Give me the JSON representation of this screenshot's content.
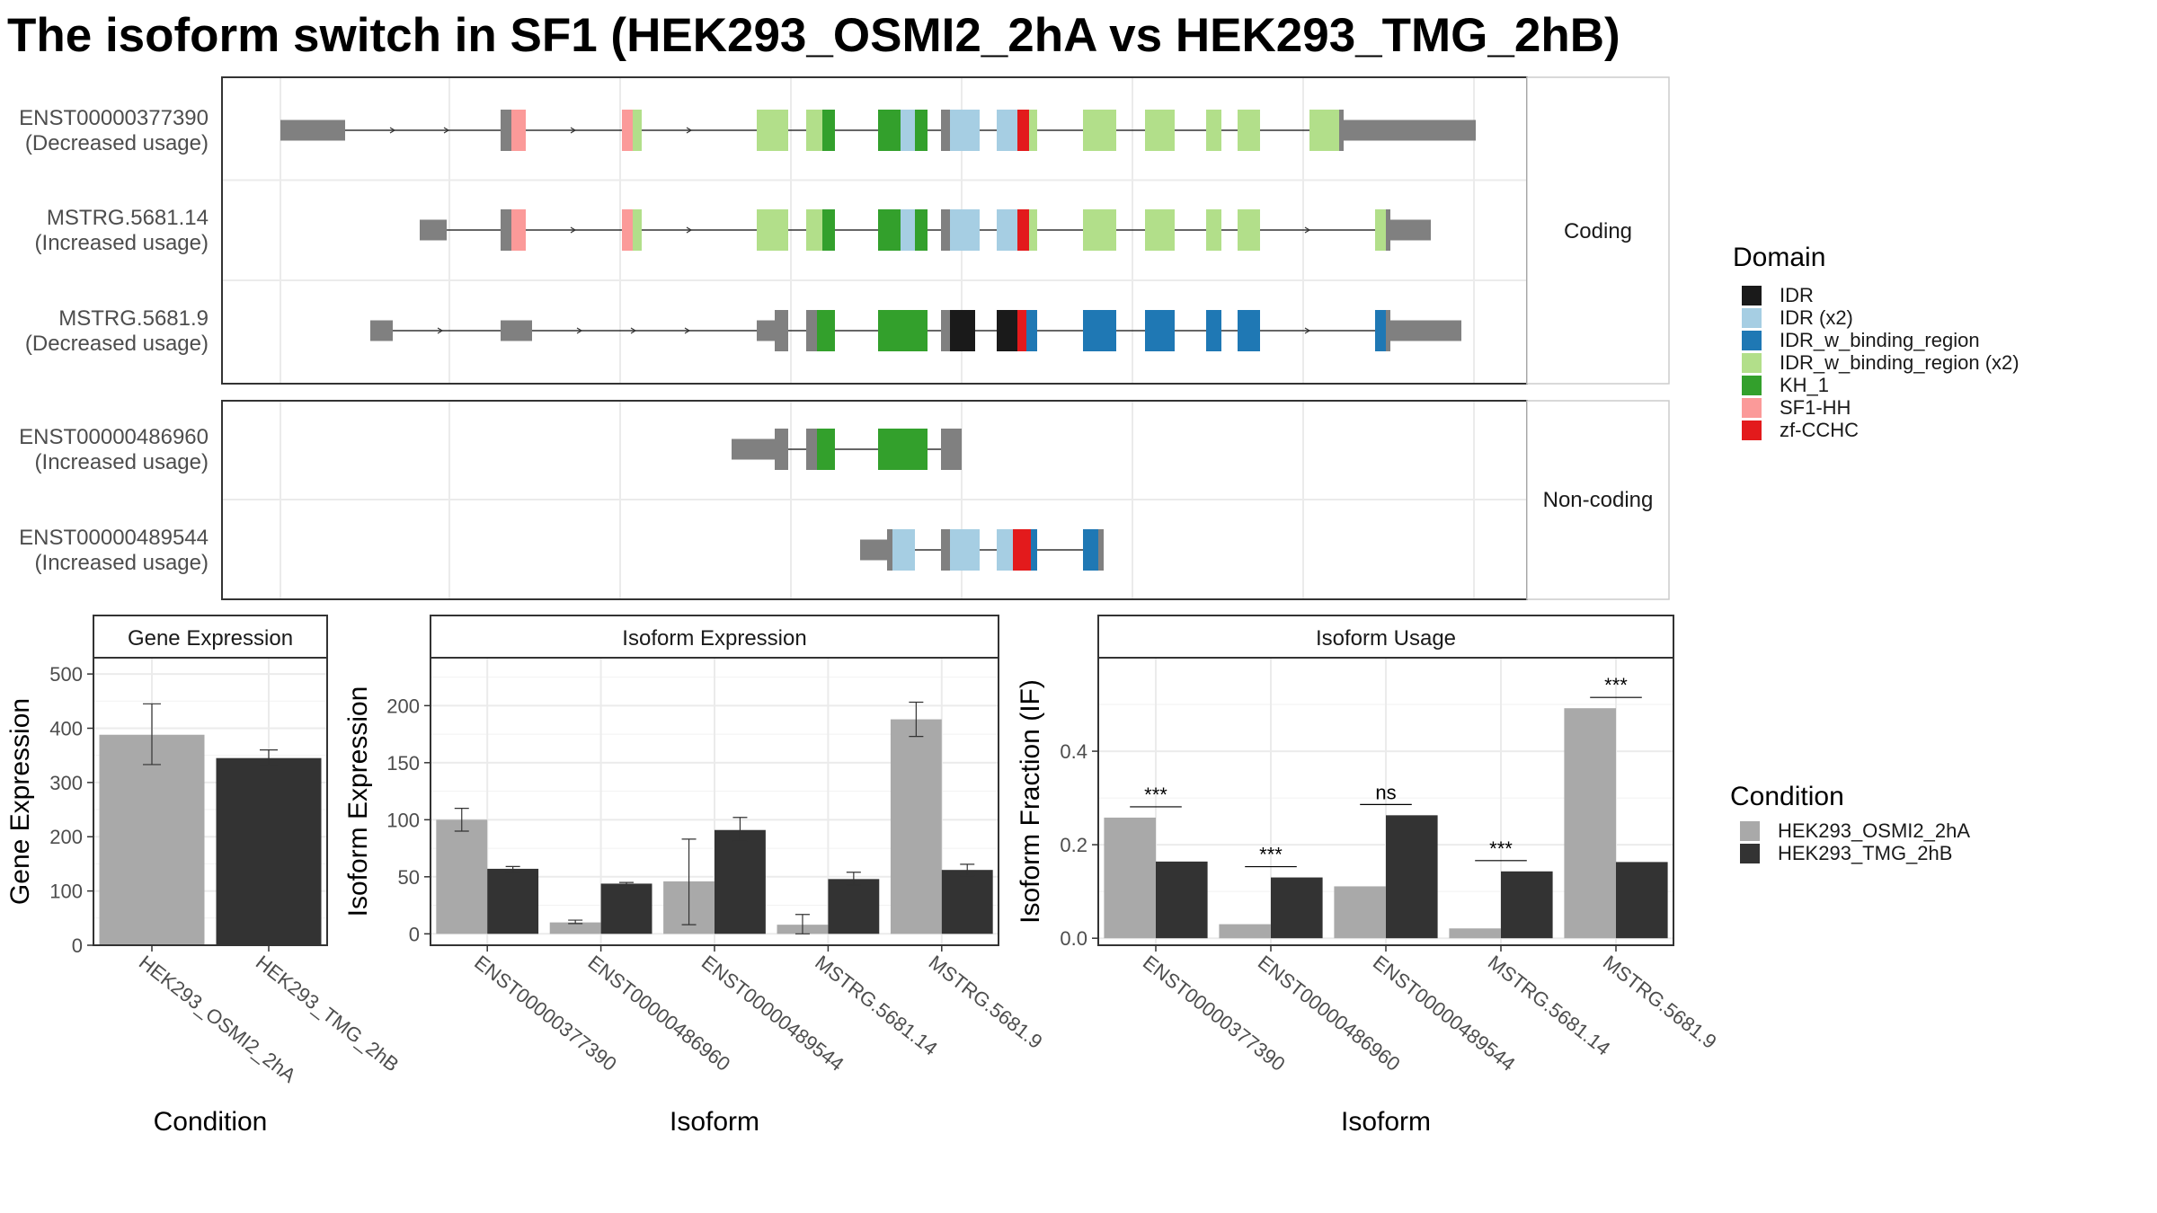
{
  "title": "The isoform switch in SF1 (HEK293_OSMI2_2hA vs HEK293_TMG_2hB)",
  "colors": {
    "IDR": "#1a1a1a",
    "IDR (x2)": "#a6cee3",
    "IDR_w_binding_region": "#1f78b4",
    "IDR_w_binding_region (x2)": "#b2df8a",
    "KH_1": "#33a02c",
    "SF1-HH": "#fb9a99",
    "zf-CCHC": "#e31a1c",
    "none": "#808080",
    "cond_a": "#a9a9a9",
    "cond_b": "#333333"
  },
  "structure": {
    "groups": [
      {
        "label": "Coding",
        "transcripts": [
          {
            "id": "ENST00000377390",
            "usage": "(Decreased usage)",
            "segments": [
              {
                "s": 0,
                "e": 72,
                "d": "none",
                "t": "utr"
              },
              {
                "s": 245,
                "e": 257,
                "d": "none",
                "t": "cds"
              },
              {
                "s": 257,
                "e": 273,
                "d": "SF1-HH",
                "t": "cds"
              },
              {
                "s": 380,
                "e": 392,
                "d": "SF1-HH",
                "t": "cds"
              },
              {
                "s": 392,
                "e": 402,
                "d": "IDR_w_binding_region (x2)",
                "t": "cds"
              },
              {
                "s": 530,
                "e": 565,
                "d": "IDR_w_binding_region (x2)",
                "t": "cds"
              },
              {
                "s": 585,
                "e": 603,
                "d": "IDR_w_binding_region (x2)",
                "t": "cds"
              },
              {
                "s": 603,
                "e": 617,
                "d": "KH_1",
                "t": "cds"
              },
              {
                "s": 665,
                "e": 690,
                "d": "KH_1",
                "t": "cds"
              },
              {
                "s": 690,
                "e": 706,
                "d": "IDR (x2)",
                "t": "cds"
              },
              {
                "s": 706,
                "e": 720,
                "d": "KH_1",
                "t": "cds"
              },
              {
                "s": 735,
                "e": 745,
                "d": "none",
                "t": "cds"
              },
              {
                "s": 745,
                "e": 778,
                "d": "IDR (x2)",
                "t": "cds"
              },
              {
                "s": 797,
                "e": 820,
                "d": "IDR (x2)",
                "t": "cds"
              },
              {
                "s": 820,
                "e": 833,
                "d": "zf-CCHC",
                "t": "cds"
              },
              {
                "s": 833,
                "e": 842,
                "d": "IDR_w_binding_region (x2)",
                "t": "cds"
              },
              {
                "s": 893,
                "e": 930,
                "d": "IDR_w_binding_region (x2)",
                "t": "cds"
              },
              {
                "s": 962,
                "e": 995,
                "d": "IDR_w_binding_region (x2)",
                "t": "cds"
              },
              {
                "s": 1030,
                "e": 1047,
                "d": "IDR_w_binding_region (x2)",
                "t": "cds"
              },
              {
                "s": 1065,
                "e": 1090,
                "d": "IDR_w_binding_region (x2)",
                "t": "cds"
              },
              {
                "s": 1145,
                "e": 1178,
                "d": "IDR_w_binding_region (x2)",
                "t": "cds"
              },
              {
                "s": 1178,
                "e": 1183,
                "d": "none",
                "t": "cds"
              },
              {
                "s": 1183,
                "e": 1330,
                "d": "none",
                "t": "utr"
              }
            ]
          },
          {
            "id": "MSTRG.5681.14",
            "usage": "(Increased usage)",
            "segments": [
              {
                "s": 155,
                "e": 185,
                "d": "none",
                "t": "utr"
              },
              {
                "s": 245,
                "e": 257,
                "d": "none",
                "t": "cds"
              },
              {
                "s": 257,
                "e": 273,
                "d": "SF1-HH",
                "t": "cds"
              },
              {
                "s": 380,
                "e": 392,
                "d": "SF1-HH",
                "t": "cds"
              },
              {
                "s": 392,
                "e": 402,
                "d": "IDR_w_binding_region (x2)",
                "t": "cds"
              },
              {
                "s": 530,
                "e": 565,
                "d": "IDR_w_binding_region (x2)",
                "t": "cds"
              },
              {
                "s": 585,
                "e": 603,
                "d": "IDR_w_binding_region (x2)",
                "t": "cds"
              },
              {
                "s": 603,
                "e": 617,
                "d": "KH_1",
                "t": "cds"
              },
              {
                "s": 665,
                "e": 690,
                "d": "KH_1",
                "t": "cds"
              },
              {
                "s": 690,
                "e": 706,
                "d": "IDR (x2)",
                "t": "cds"
              },
              {
                "s": 706,
                "e": 720,
                "d": "KH_1",
                "t": "cds"
              },
              {
                "s": 735,
                "e": 745,
                "d": "none",
                "t": "cds"
              },
              {
                "s": 745,
                "e": 778,
                "d": "IDR (x2)",
                "t": "cds"
              },
              {
                "s": 797,
                "e": 820,
                "d": "IDR (x2)",
                "t": "cds"
              },
              {
                "s": 820,
                "e": 833,
                "d": "zf-CCHC",
                "t": "cds"
              },
              {
                "s": 833,
                "e": 842,
                "d": "IDR_w_binding_region (x2)",
                "t": "cds"
              },
              {
                "s": 893,
                "e": 930,
                "d": "IDR_w_binding_region (x2)",
                "t": "cds"
              },
              {
                "s": 962,
                "e": 995,
                "d": "IDR_w_binding_region (x2)",
                "t": "cds"
              },
              {
                "s": 1030,
                "e": 1047,
                "d": "IDR_w_binding_region (x2)",
                "t": "cds"
              },
              {
                "s": 1065,
                "e": 1090,
                "d": "IDR_w_binding_region (x2)",
                "t": "cds"
              },
              {
                "s": 1218,
                "e": 1230,
                "d": "IDR_w_binding_region (x2)",
                "t": "cds"
              },
              {
                "s": 1230,
                "e": 1235,
                "d": "none",
                "t": "cds"
              },
              {
                "s": 1235,
                "e": 1280,
                "d": "none",
                "t": "utr"
              }
            ]
          },
          {
            "id": "MSTRG.5681.9",
            "usage": "(Decreased usage)",
            "segments": [
              {
                "s": 100,
                "e": 125,
                "d": "none",
                "t": "utr"
              },
              {
                "s": 245,
                "e": 280,
                "d": "none",
                "t": "utr"
              },
              {
                "s": 530,
                "e": 550,
                "d": "none",
                "t": "utr"
              },
              {
                "s": 550,
                "e": 565,
                "d": "none",
                "t": "cds"
              },
              {
                "s": 585,
                "e": 597,
                "d": "none",
                "t": "cds"
              },
              {
                "s": 597,
                "e": 617,
                "d": "KH_1",
                "t": "cds"
              },
              {
                "s": 665,
                "e": 720,
                "d": "KH_1",
                "t": "cds"
              },
              {
                "s": 735,
                "e": 745,
                "d": "none",
                "t": "cds"
              },
              {
                "s": 745,
                "e": 773,
                "d": "IDR",
                "t": "cds"
              },
              {
                "s": 797,
                "e": 820,
                "d": "IDR",
                "t": "cds"
              },
              {
                "s": 820,
                "e": 830,
                "d": "zf-CCHC",
                "t": "cds"
              },
              {
                "s": 830,
                "e": 842,
                "d": "IDR_w_binding_region",
                "t": "cds"
              },
              {
                "s": 893,
                "e": 930,
                "d": "IDR_w_binding_region",
                "t": "cds"
              },
              {
                "s": 962,
                "e": 995,
                "d": "IDR_w_binding_region",
                "t": "cds"
              },
              {
                "s": 1030,
                "e": 1047,
                "d": "IDR_w_binding_region",
                "t": "cds"
              },
              {
                "s": 1065,
                "e": 1090,
                "d": "IDR_w_binding_region",
                "t": "cds"
              },
              {
                "s": 1218,
                "e": 1230,
                "d": "IDR_w_binding_region",
                "t": "cds"
              },
              {
                "s": 1230,
                "e": 1235,
                "d": "none",
                "t": "cds"
              },
              {
                "s": 1235,
                "e": 1314,
                "d": "none",
                "t": "utr"
              }
            ]
          }
        ]
      },
      {
        "label": "Non-coding",
        "transcripts": [
          {
            "id": "ENST00000486960",
            "usage": "(Increased usage)",
            "segments": [
              {
                "s": 502,
                "e": 550,
                "d": "none",
                "t": "utr"
              },
              {
                "s": 550,
                "e": 565,
                "d": "none",
                "t": "cds"
              },
              {
                "s": 585,
                "e": 597,
                "d": "none",
                "t": "cds"
              },
              {
                "s": 597,
                "e": 617,
                "d": "KH_1",
                "t": "cds"
              },
              {
                "s": 665,
                "e": 720,
                "d": "KH_1",
                "t": "cds"
              },
              {
                "s": 735,
                "e": 758,
                "d": "none",
                "t": "cds"
              }
            ]
          },
          {
            "id": "ENST00000489544",
            "usage": "(Increased usage)",
            "segments": [
              {
                "s": 645,
                "e": 675,
                "d": "none",
                "t": "utr"
              },
              {
                "s": 675,
                "e": 681,
                "d": "none",
                "t": "cds"
              },
              {
                "s": 681,
                "e": 706,
                "d": "IDR (x2)",
                "t": "cds"
              },
              {
                "s": 735,
                "e": 745,
                "d": "none",
                "t": "cds"
              },
              {
                "s": 745,
                "e": 778,
                "d": "IDR (x2)",
                "t": "cds"
              },
              {
                "s": 797,
                "e": 815,
                "d": "IDR (x2)",
                "t": "cds"
              },
              {
                "s": 815,
                "e": 835,
                "d": "zf-CCHC",
                "t": "cds"
              },
              {
                "s": 835,
                "e": 842,
                "d": "IDR_w_binding_region",
                "t": "cds"
              },
              {
                "s": 893,
                "e": 910,
                "d": "IDR_w_binding_region",
                "t": "cds"
              },
              {
                "s": 910,
                "e": 916,
                "d": "none",
                "t": "cds"
              }
            ]
          }
        ]
      }
    ]
  },
  "legend": {
    "domain_title": "Domain",
    "domains": [
      "IDR",
      "IDR (x2)",
      "IDR_w_binding_region",
      "IDR_w_binding_region (x2)",
      "KH_1",
      "SF1-HH",
      "zf-CCHC"
    ],
    "condition_title": "Condition",
    "conditions": [
      "HEK293_OSMI2_2hA",
      "HEK293_TMG_2hB"
    ]
  },
  "chart_data": [
    {
      "type": "bar",
      "title": "Gene Expression",
      "xlabel": "Condition",
      "ylabel": "Gene Expression",
      "categories": [
        "HEK293_OSMI2_2hA",
        "HEK293_TMG_2hB"
      ],
      "values": [
        388,
        345
      ],
      "err_low": [
        333,
        332
      ],
      "err_high": [
        445,
        360
      ],
      "ylim": [
        0,
        530
      ],
      "yticks": [
        0,
        100,
        200,
        300,
        400,
        500
      ]
    },
    {
      "type": "bar",
      "title": "Isoform Expression",
      "xlabel": "Isoform",
      "ylabel": "Isoform Expression",
      "categories": [
        "ENST00000377390",
        "ENST00000486960",
        "ENST00000489544",
        "MSTRG.5681.14",
        "MSTRG.5681.9"
      ],
      "series": [
        {
          "name": "HEK293_OSMI2_2hA",
          "values": [
            100,
            10,
            46,
            8,
            188
          ],
          "err_low": [
            90,
            9,
            8,
            0,
            173
          ],
          "err_high": [
            110,
            12,
            83,
            17,
            203
          ]
        },
        {
          "name": "HEK293_TMG_2hB",
          "values": [
            57,
            44,
            91,
            48,
            56
          ],
          "err_low": [
            54,
            43,
            81,
            43,
            51
          ],
          "err_high": [
            59,
            45,
            102,
            54,
            61
          ]
        }
      ],
      "ylim": [
        -10,
        242
      ],
      "yticks": [
        0,
        50,
        100,
        150,
        200
      ]
    },
    {
      "type": "bar",
      "title": "Isoform Usage",
      "xlabel": "Isoform",
      "ylabel": "Isoform Fraction (IF)",
      "categories": [
        "ENST00000377390",
        "ENST00000486960",
        "ENST00000489544",
        "MSTRG.5681.14",
        "MSTRG.5681.9"
      ],
      "series": [
        {
          "name": "HEK293_OSMI2_2hA",
          "values": [
            0.258,
            0.03,
            0.111,
            0.021,
            0.492
          ]
        },
        {
          "name": "HEK293_TMG_2hB",
          "values": [
            0.164,
            0.13,
            0.263,
            0.143,
            0.163
          ]
        }
      ],
      "significance": [
        "***",
        "***",
        "ns",
        "***",
        "***"
      ],
      "ylim": [
        -0.015,
        0.6
      ],
      "yticks": [
        "0.0",
        "0.2",
        "0.4"
      ]
    }
  ]
}
